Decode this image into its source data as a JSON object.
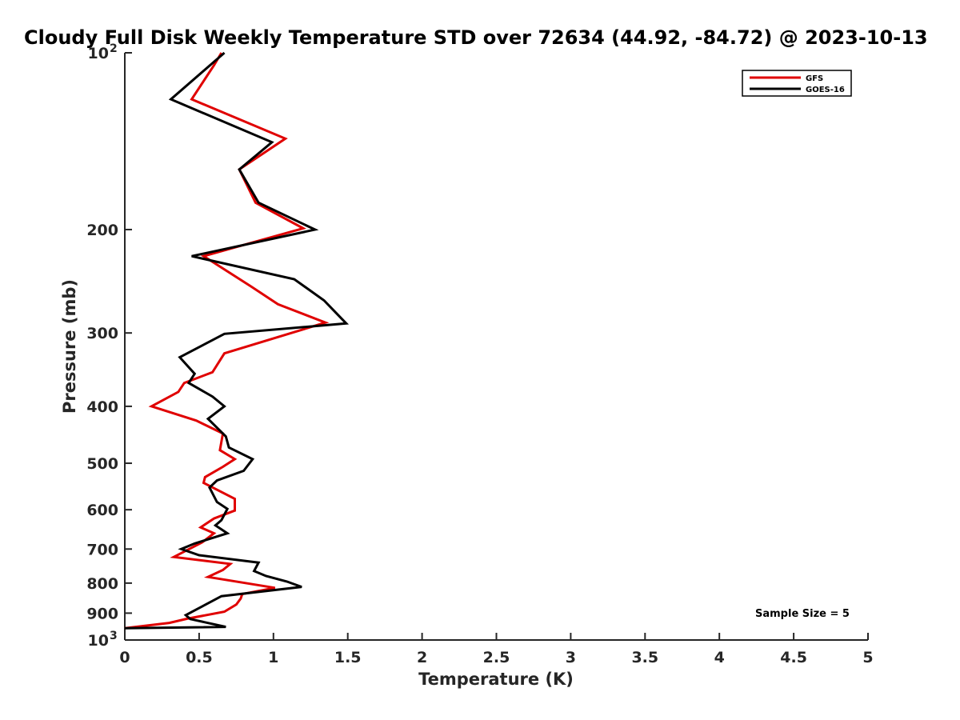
{
  "chart_data": {
    "type": "line",
    "title": "Cloudy Full Disk Weekly Temperature STD over 72634 (44.92, -84.72) @ 2023-10-13",
    "xlabel": "Temperature (K)",
    "ylabel": "Pressure (mb)",
    "xlim": [
      0,
      5
    ],
    "ylim": [
      100,
      1000
    ],
    "y_scale": "log",
    "y_reversed": true,
    "grid": false,
    "legend_position": "top-right",
    "x_ticks": [
      "0",
      "0.5",
      "1",
      "1.5",
      "2",
      "2.5",
      "3",
      "3.5",
      "4",
      "4.5",
      "5"
    ],
    "y_ticks": [
      {
        "value": 100,
        "label": "10",
        "sup": "2"
      },
      {
        "value": 200,
        "label": "200"
      },
      {
        "value": 300,
        "label": "300"
      },
      {
        "value": 400,
        "label": "400"
      },
      {
        "value": 500,
        "label": "500"
      },
      {
        "value": 600,
        "label": "600"
      },
      {
        "value": 700,
        "label": "700"
      },
      {
        "value": 800,
        "label": "800"
      },
      {
        "value": 900,
        "label": "900"
      },
      {
        "value": 1000,
        "label": "10",
        "sup": "3"
      }
    ],
    "annotation": "Sample Size = 5",
    "series": [
      {
        "name": "GFS",
        "color": "#e00000",
        "points": [
          [
            0.65,
            100
          ],
          [
            0.6,
            105
          ],
          [
            0.45,
            120
          ],
          [
            1.08,
            140
          ],
          [
            0.77,
            158
          ],
          [
            0.88,
            180
          ],
          [
            1.2,
            199
          ],
          [
            0.53,
            222
          ],
          [
            0.85,
            250
          ],
          [
            1.03,
            268
          ],
          [
            1.35,
            288
          ],
          [
            0.67,
            325
          ],
          [
            0.59,
            350
          ],
          [
            0.4,
            365
          ],
          [
            0.36,
            378
          ],
          [
            0.18,
            400
          ],
          [
            0.48,
            423
          ],
          [
            0.66,
            445
          ],
          [
            0.64,
            475
          ],
          [
            0.74,
            492
          ],
          [
            0.66,
            507
          ],
          [
            0.54,
            528
          ],
          [
            0.53,
            540
          ],
          [
            0.74,
            575
          ],
          [
            0.74,
            602
          ],
          [
            0.6,
            621
          ],
          [
            0.51,
            643
          ],
          [
            0.6,
            658
          ],
          [
            0.52,
            682
          ],
          [
            0.33,
            722
          ],
          [
            0.71,
            742
          ],
          [
            0.66,
            760
          ],
          [
            0.56,
            781
          ],
          [
            1.01,
            815
          ],
          [
            0.79,
            835
          ],
          [
            0.78,
            850
          ],
          [
            0.75,
            870
          ],
          [
            0.67,
            895
          ],
          [
            0.42,
            920
          ],
          [
            0.3,
            935
          ],
          [
            0.0,
            955
          ]
        ]
      },
      {
        "name": "GOES-16",
        "color": "#000000",
        "points": [
          [
            0.67,
            100
          ],
          [
            0.31,
            120
          ],
          [
            0.99,
            142
          ],
          [
            0.77,
            158
          ],
          [
            0.9,
            180
          ],
          [
            1.28,
            200
          ],
          [
            0.45,
            222
          ],
          [
            1.14,
            243
          ],
          [
            1.34,
            264
          ],
          [
            1.49,
            289
          ],
          [
            0.67,
            301
          ],
          [
            0.37,
            330
          ],
          [
            0.47,
            352
          ],
          [
            0.43,
            365
          ],
          [
            0.59,
            385
          ],
          [
            0.67,
            400
          ],
          [
            0.56,
            420
          ],
          [
            0.68,
            450
          ],
          [
            0.7,
            470
          ],
          [
            0.86,
            492
          ],
          [
            0.8,
            515
          ],
          [
            0.62,
            535
          ],
          [
            0.57,
            550
          ],
          [
            0.62,
            582
          ],
          [
            0.69,
            598
          ],
          [
            0.65,
            625
          ],
          [
            0.61,
            638
          ],
          [
            0.69,
            658
          ],
          [
            0.47,
            685
          ],
          [
            0.38,
            700
          ],
          [
            0.5,
            717
          ],
          [
            0.9,
            738
          ],
          [
            0.87,
            763
          ],
          [
            0.95,
            778
          ],
          [
            1.09,
            795
          ],
          [
            1.19,
            812
          ],
          [
            0.65,
            842
          ],
          [
            0.41,
            907
          ],
          [
            0.44,
            921
          ],
          [
            0.68,
            950
          ],
          [
            0.0,
            955
          ]
        ]
      }
    ]
  }
}
